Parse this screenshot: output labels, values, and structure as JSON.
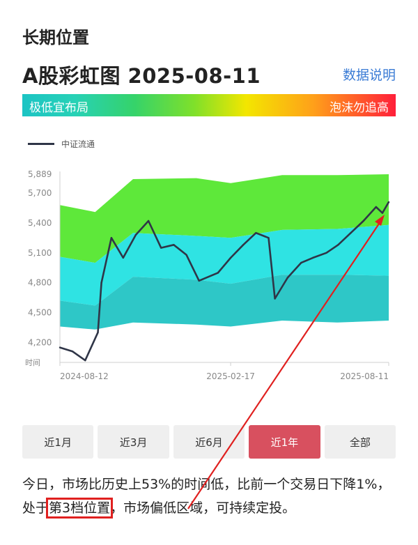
{
  "section_title": "长期位置",
  "headline": "A股彩虹图 2025-08-11",
  "help_link": "数据说明",
  "rainbow": {
    "left_label": "极低宜布局",
    "right_label": "泡沫勿追高"
  },
  "legend_label": "中证流通",
  "periods": [
    {
      "label": "近1月",
      "active": false
    },
    {
      "label": "近3月",
      "active": false
    },
    {
      "label": "近6月",
      "active": false
    },
    {
      "label": "近1年",
      "active": true
    },
    {
      "label": "全部",
      "active": false
    }
  ],
  "summary": {
    "part1": "今日，市场比历史上53%的时间低，比前一个交易日下降1%，处于",
    "highlight": "第3档位置",
    "part2": "，市场偏低区域，可持续定投。"
  },
  "colors": {
    "line": "#2f3547",
    "band_green": "#5ee83a",
    "band_cyan": "#2fe3e3",
    "band_teal": "#2ec7c7",
    "active_button": "#d8505f",
    "annotation": "#e0201f"
  },
  "chart_data": {
    "type": "line",
    "series": [
      {
        "name": "中证流通",
        "x": [
          "2024-08-12",
          "2024-08-26",
          "2024-09-09",
          "2024-09-23",
          "2024-09-27",
          "2024-10-08",
          "2024-10-21",
          "2024-11-04",
          "2024-11-18",
          "2024-12-02",
          "2024-12-16",
          "2024-12-30",
          "2025-01-13",
          "2025-02-03",
          "2025-02-17",
          "2025-03-03",
          "2025-03-17",
          "2025-03-31",
          "2025-04-07",
          "2025-04-21",
          "2025-05-06",
          "2025-05-19",
          "2025-06-03",
          "2025-06-16",
          "2025-06-30",
          "2025-07-14",
          "2025-07-28",
          "2025-08-04",
          "2025-08-11"
        ],
        "y": [
          4150,
          4110,
          4020,
          4300,
          4800,
          5250,
          5050,
          5280,
          5420,
          5150,
          5180,
          5080,
          4820,
          4900,
          5050,
          5180,
          5300,
          5250,
          4640,
          4850,
          5000,
          5050,
          5100,
          5180,
          5300,
          5420,
          5560,
          5500,
          5610
        ]
      }
    ],
    "bands": [
      {
        "name": "upper",
        "color": "#5ee83a"
      },
      {
        "name": "middle",
        "color": "#2fe3e3"
      },
      {
        "name": "lower",
        "color": "#2ec7c7"
      }
    ],
    "y_ticks": [
      4200,
      4500,
      4800,
      5100,
      5400,
      5700,
      5889
    ],
    "x_ticks": [
      "2024-08-12",
      "2025-02-17",
      "2025-08-11"
    ],
    "xlabel": "时间",
    "ylim": [
      4000,
      5889
    ]
  }
}
